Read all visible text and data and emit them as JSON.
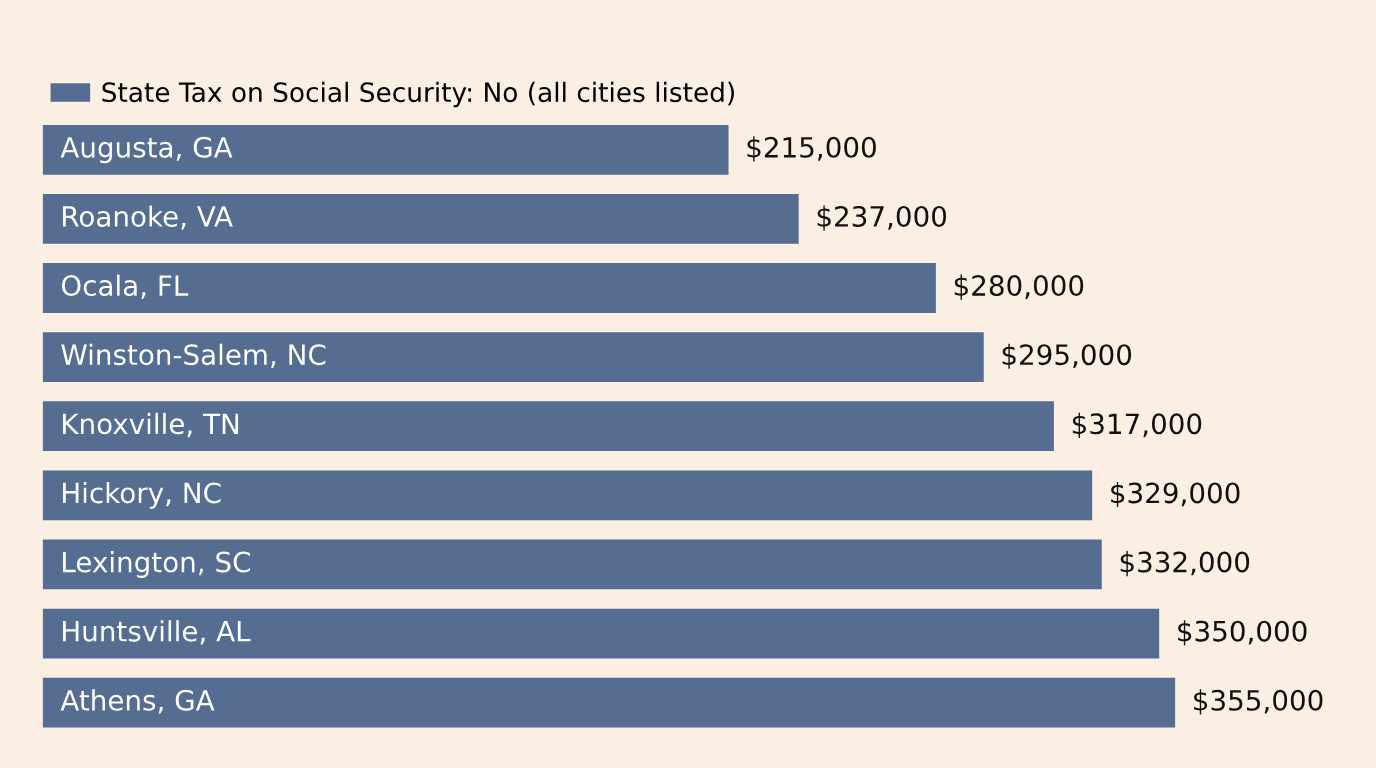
{
  "chart_data": {
    "type": "bar",
    "orientation": "horizontal",
    "categories": [
      "Augusta, GA",
      "Roanoke, VA",
      "Ocala, FL",
      "Winston-Salem, NC",
      "Knoxville, TN",
      "Hickory, NC",
      "Lexington, SC",
      "Huntsville, AL",
      "Athens, GA"
    ],
    "series": [
      {
        "name": "State Tax on Social Security: No (all cities listed)",
        "color": "#546d91",
        "values": [
          215000,
          237000,
          280000,
          295000,
          317000,
          329000,
          332000,
          350000,
          355000
        ],
        "value_labels": [
          "$215,000",
          "$237,000",
          "$280,000",
          "$295,000",
          "$317,000",
          "$329,000",
          "$332,000",
          "$350,000",
          "$355,000"
        ]
      }
    ],
    "legend": "top left"
  }
}
